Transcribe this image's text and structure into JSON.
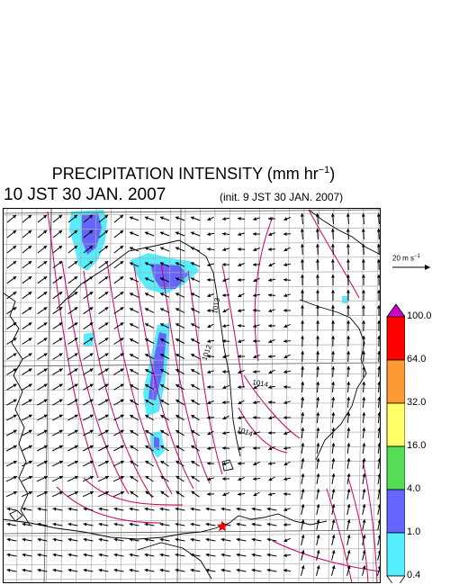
{
  "header": {
    "title": "PRECIPITATION INTENSITY (mm hr",
    "title_exponent": "−1",
    "title_close": ")",
    "valid_time": "10 JST 30 JAN. 2007",
    "init_time": "(init. 9 JST 30 JAN. 2007)"
  },
  "wind_scale": {
    "label": "20 m s",
    "label_exponent": "−1",
    "speed_ms": 20
  },
  "colorbar": {
    "levels": [
      "100.0",
      "64.0",
      "32.0",
      "16.0",
      "4.0",
      "1.0",
      "0.4"
    ],
    "colors": [
      "#cc00cc",
      "#ff0000",
      "#ff9933",
      "#ffff66",
      "#55dd55",
      "#6666ff",
      "#55eeff"
    ]
  },
  "isobars": {
    "labels": [
      "1013",
      "1012",
      "1014",
      "1014"
    ],
    "color": "#cc0066"
  },
  "map": {
    "marker": "red-star",
    "marker_color": "#ff0000"
  }
}
